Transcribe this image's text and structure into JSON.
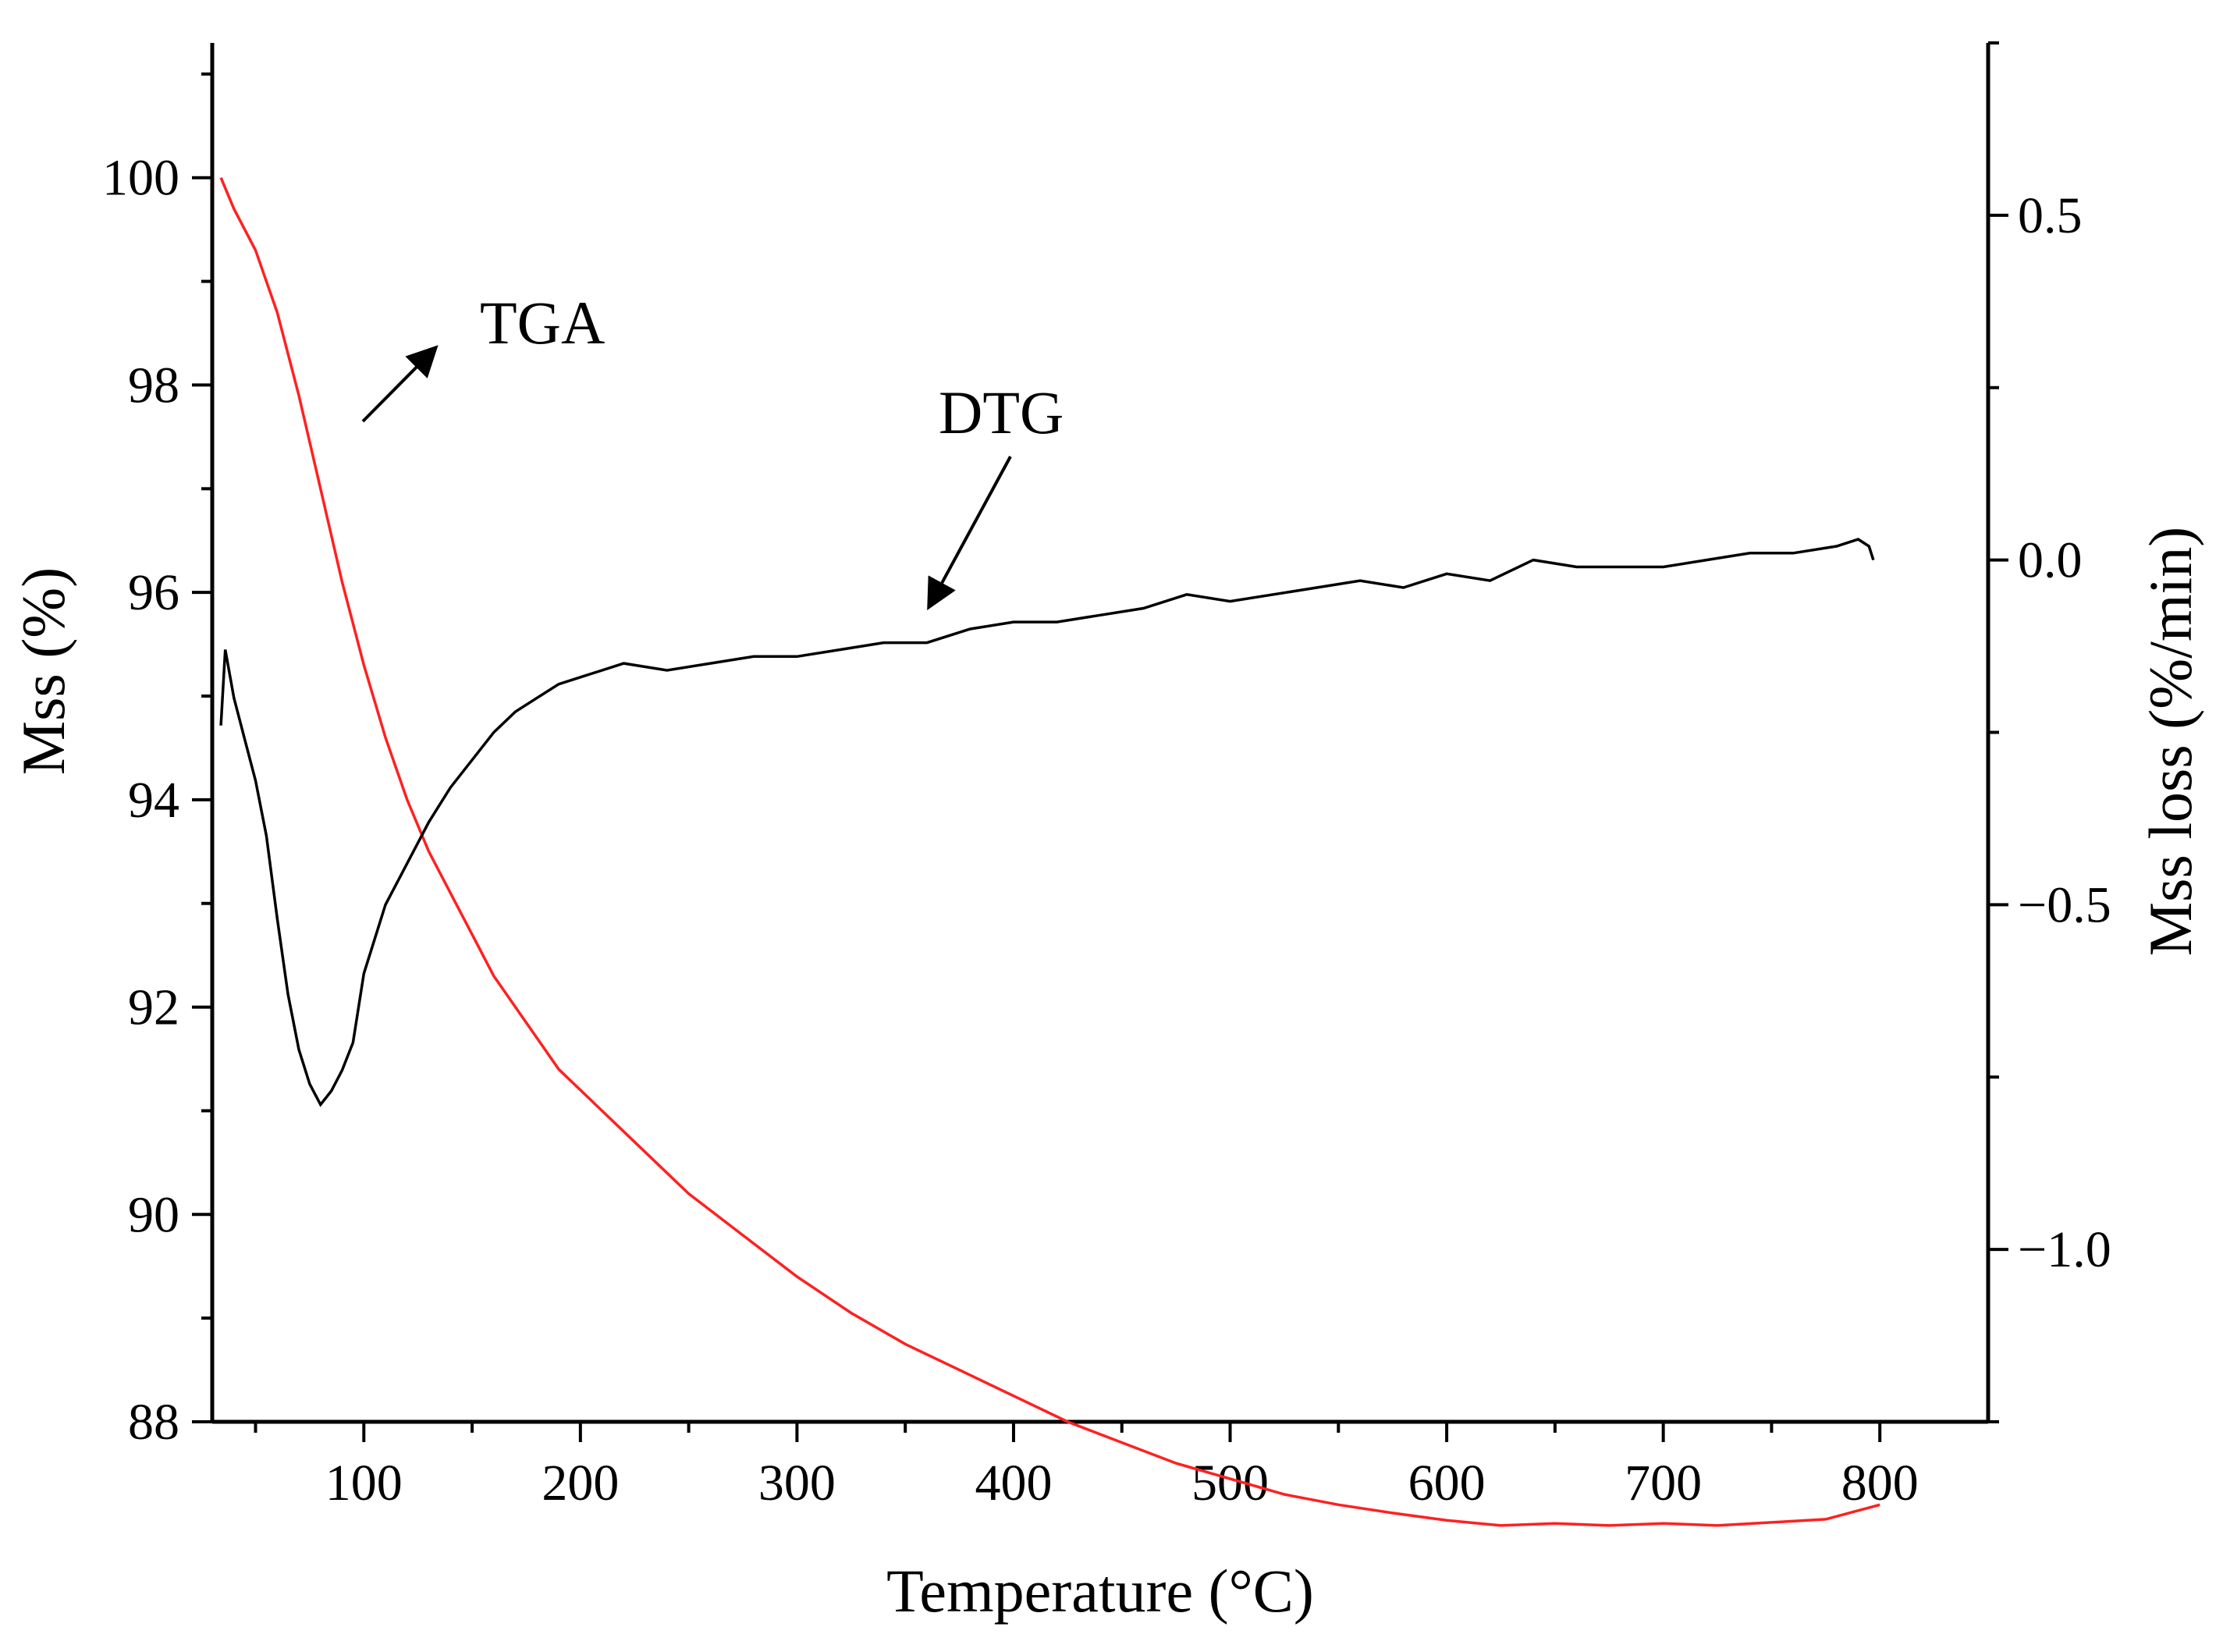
{
  "chart_data": {
    "type": "line",
    "xlabel": "Temperature (°C)",
    "ylabel_left": "Mss (%)",
    "ylabel_right": "Mss loss (%/min)",
    "xlim": [
      30,
      850
    ],
    "ylim_left": [
      88,
      101.3
    ],
    "ylim_right": [
      -1.25,
      0.75
    ],
    "x_ticks": [
      100,
      200,
      300,
      400,
      500,
      600,
      700,
      800
    ],
    "x_tick_labels": [
      "100",
      "200",
      "300",
      "400",
      "500",
      "600",
      "700",
      "800"
    ],
    "y_left_ticks": [
      88,
      90,
      92,
      94,
      96,
      98,
      100
    ],
    "y_left_tick_labels": [
      "88",
      "90",
      "92",
      "94",
      "96",
      "98",
      "100"
    ],
    "y_right_ticks": [
      -1.0,
      -0.5,
      0.0,
      0.5
    ],
    "y_right_tick_labels": [
      "−1.0",
      "−0.5",
      "0.0",
      "0.5"
    ],
    "grid": false,
    "series": [
      {
        "name": "TGA",
        "axis": "left",
        "color": "#ff2020",
        "x": [
          34,
          40,
          50,
          60,
          70,
          80,
          90,
          100,
          110,
          120,
          130,
          140,
          150,
          160,
          170,
          180,
          190,
          200,
          225,
          250,
          275,
          300,
          325,
          350,
          375,
          400,
          425,
          450,
          475,
          500,
          525,
          550,
          575,
          600,
          625,
          650,
          675,
          700,
          725,
          750,
          775,
          800
        ],
        "y": [
          100.0,
          99.7,
          99.3,
          98.7,
          97.9,
          97.0,
          96.1,
          95.3,
          94.6,
          94.0,
          93.5,
          93.1,
          92.7,
          92.3,
          92.0,
          91.7,
          91.4,
          91.2,
          90.7,
          90.2,
          89.8,
          89.4,
          89.05,
          88.75,
          88.5,
          88.25,
          88.0,
          87.8,
          87.6,
          87.45,
          87.3,
          87.2,
          87.12,
          87.05,
          87.0,
          87.02,
          87.0,
          87.02,
          87.0,
          87.03,
          87.06,
          87.2
        ]
      },
      {
        "name": "DTG",
        "axis": "right",
        "color": "#000000",
        "x": [
          34,
          36,
          40,
          45,
          50,
          55,
          60,
          65,
          70,
          75,
          80,
          85,
          90,
          95,
          100,
          110,
          120,
          130,
          140,
          150,
          160,
          170,
          180,
          190,
          200,
          220,
          240,
          260,
          280,
          300,
          320,
          340,
          360,
          380,
          400,
          420,
          440,
          460,
          480,
          500,
          520,
          540,
          560,
          580,
          600,
          620,
          640,
          660,
          680,
          700,
          720,
          740,
          760,
          780,
          790,
          795,
          797
        ],
        "y": [
          -0.24,
          -0.13,
          -0.2,
          -0.26,
          -0.32,
          -0.4,
          -0.52,
          -0.63,
          -0.71,
          -0.76,
          -0.79,
          -0.77,
          -0.74,
          -0.7,
          -0.6,
          -0.5,
          -0.44,
          -0.38,
          -0.33,
          -0.29,
          -0.25,
          -0.22,
          -0.2,
          -0.18,
          -0.17,
          -0.15,
          -0.16,
          -0.15,
          -0.14,
          -0.14,
          -0.13,
          -0.12,
          -0.12,
          -0.1,
          -0.09,
          -0.09,
          -0.08,
          -0.07,
          -0.05,
          -0.06,
          -0.05,
          -0.04,
          -0.03,
          -0.04,
          -0.02,
          -0.03,
          0.0,
          -0.01,
          -0.01,
          -0.01,
          0.0,
          0.01,
          0.01,
          0.02,
          0.03,
          0.02,
          0.0
        ]
      }
    ],
    "annotations": [
      {
        "text": "TGA"
      },
      {
        "text": "DTG"
      }
    ]
  }
}
